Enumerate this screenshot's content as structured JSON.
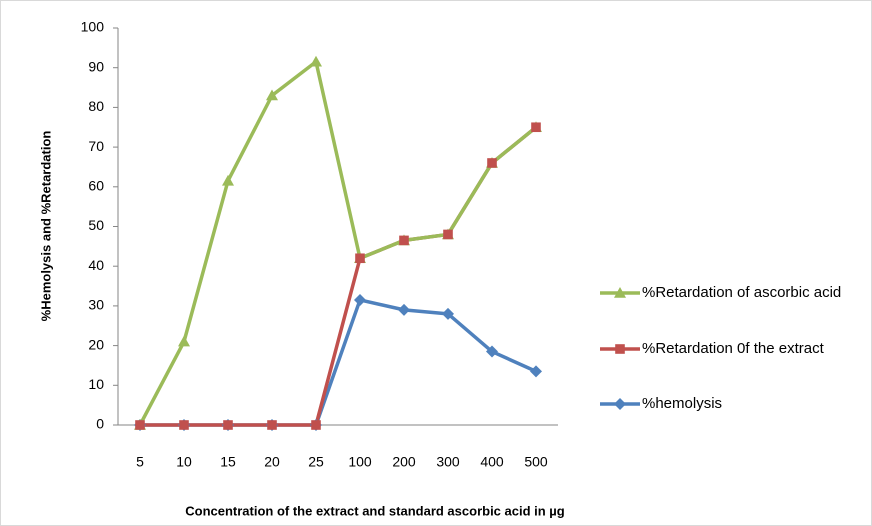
{
  "chart_data": {
    "type": "line",
    "x_label": "Concentration of the extract and standard ascorbic acid in µg",
    "y_label": "%Hemolysis and %Retardation",
    "categories": [
      "5",
      "10",
      "15",
      "20",
      "25",
      "100",
      "200",
      "300",
      "400",
      "500"
    ],
    "series": [
      {
        "name": "%Retardation of ascorbic acid",
        "color": "#9bbb59",
        "marker": "triangle",
        "values": [
          0,
          21,
          61.5,
          83,
          91.5,
          42,
          46.5,
          48,
          66,
          75
        ]
      },
      {
        "name": "%Retardation 0f the extract",
        "color": "#c0504d",
        "marker": "square",
        "values": [
          0,
          0,
          0,
          0,
          0,
          42,
          46.5,
          48,
          66,
          75
        ]
      },
      {
        "name": "%hemolysis",
        "color": "#4f81bd",
        "marker": "diamond",
        "values": [
          0,
          0,
          0,
          0,
          0,
          31.5,
          29,
          28,
          18.5,
          13.5
        ]
      }
    ],
    "ylim": [
      0,
      100
    ],
    "yticks": [
      0,
      10,
      20,
      30,
      40,
      50,
      60,
      70,
      80,
      90,
      100
    ],
    "grid": false,
    "legend": "right"
  }
}
